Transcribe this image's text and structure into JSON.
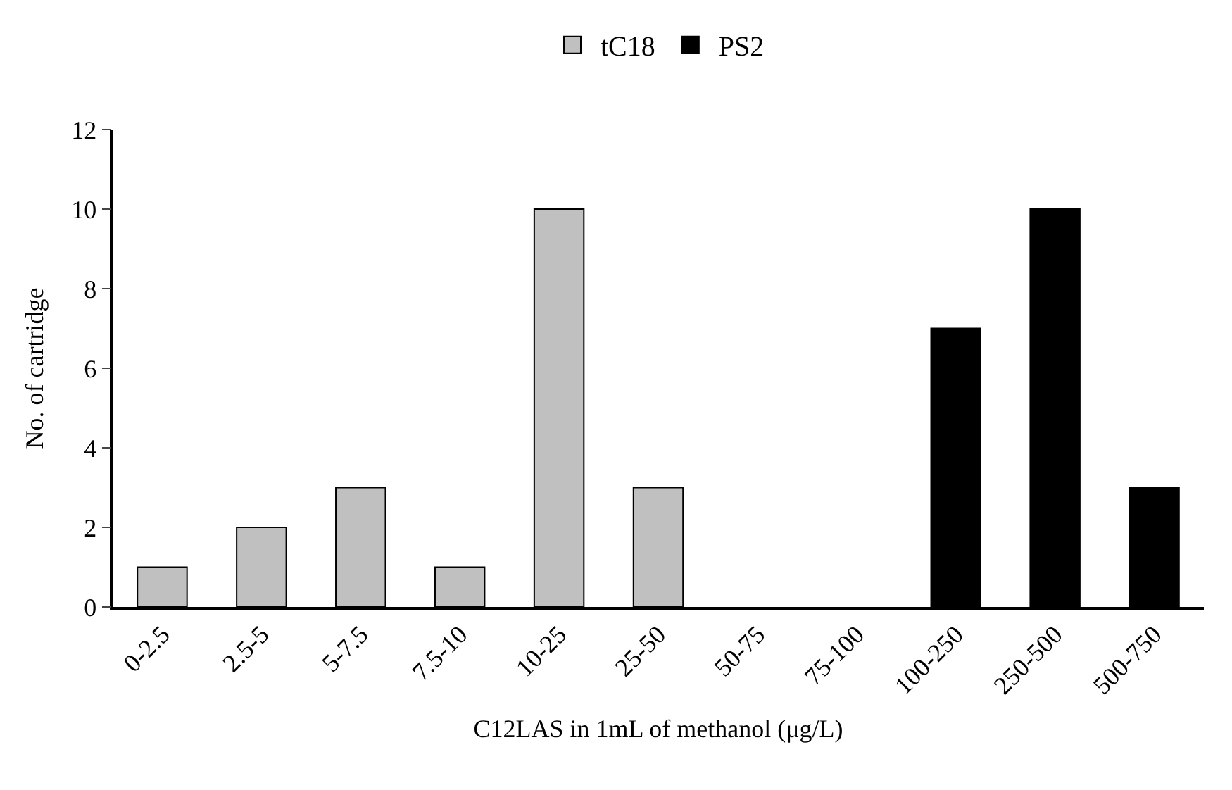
{
  "chart_data": {
    "type": "bar",
    "xlabel": "C12LAS in 1mL of methanol (μg/L)",
    "ylabel": "No. of cartridge",
    "categories": [
      "0-2.5",
      "2.5-5",
      "5-7.5",
      "7.5-10",
      "10-25",
      "25-50",
      "50-75",
      "75-100",
      "100-250",
      "250-500",
      "500-750"
    ],
    "series": [
      {
        "name": "tC18",
        "color": "#c0c0c0",
        "values": [
          1,
          2,
          3,
          1,
          10,
          3,
          null,
          null,
          null,
          null,
          null
        ]
      },
      {
        "name": "PS2",
        "color": "#000000",
        "values": [
          null,
          null,
          null,
          null,
          null,
          null,
          null,
          null,
          7,
          10,
          3
        ]
      }
    ],
    "ylim": [
      0,
      12
    ],
    "yticks": [
      0,
      2,
      4,
      6,
      8,
      10,
      12
    ],
    "grid": false,
    "legend": "top"
  }
}
